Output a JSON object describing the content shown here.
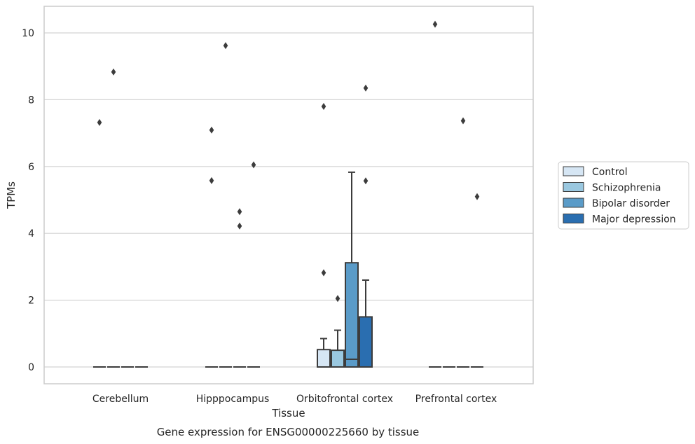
{
  "chart_data": {
    "type": "box",
    "caption": "Gene expression for ENSG00000225660 by tissue",
    "xlabel": "Tissue",
    "ylabel": "TPMs",
    "categories": [
      "Cerebellum",
      "Hipppocampus",
      "Orbitofrontal cortex",
      "Prefrontal cortex"
    ],
    "ylim": [
      -0.5,
      10.8
    ],
    "yticks": [
      0,
      2,
      4,
      6,
      8,
      10
    ],
    "grid": "y",
    "legend_position": "right",
    "series": [
      {
        "name": "Control",
        "color": "#d6e6f4",
        "boxes": [
          {
            "q1": 0,
            "median": 0,
            "q3": 0,
            "whislo": 0,
            "whishi": 0,
            "fliers": [
              7.32
            ]
          },
          {
            "q1": 0,
            "median": 0,
            "q3": 0,
            "whislo": 0,
            "whishi": 0,
            "fliers": [
              7.09,
              5.58
            ]
          },
          {
            "q1": 0,
            "median": 0,
            "q3": 0.52,
            "whislo": 0,
            "whishi": 0.85,
            "fliers": [
              7.8,
              2.82
            ]
          },
          {
            "q1": 0,
            "median": 0,
            "q3": 0,
            "whislo": 0,
            "whishi": 0,
            "fliers": [
              10.26
            ]
          }
        ]
      },
      {
        "name": "Schizophrenia",
        "color": "#9ac8e0",
        "boxes": [
          {
            "q1": 0,
            "median": 0,
            "q3": 0,
            "whislo": 0,
            "whishi": 0,
            "fliers": [
              8.83
            ]
          },
          {
            "q1": 0,
            "median": 0,
            "q3": 0,
            "whislo": 0,
            "whishi": 0,
            "fliers": [
              9.62
            ]
          },
          {
            "q1": 0,
            "median": 0,
            "q3": 0.5,
            "whislo": 0,
            "whishi": 1.1,
            "fliers": [
              2.05
            ]
          },
          {
            "q1": 0,
            "median": 0,
            "q3": 0,
            "whislo": 0,
            "whishi": 0,
            "fliers": []
          }
        ]
      },
      {
        "name": "Bipolar disorder",
        "color": "#5a9bc8",
        "boxes": [
          {
            "q1": 0,
            "median": 0,
            "q3": 0,
            "whislo": 0,
            "whishi": 0,
            "fliers": []
          },
          {
            "q1": 0,
            "median": 0,
            "q3": 0,
            "whislo": 0,
            "whishi": 0,
            "fliers": [
              4.65,
              4.22
            ]
          },
          {
            "q1": 0,
            "median": 0.23,
            "q3": 3.12,
            "whislo": 0,
            "whishi": 5.83,
            "fliers": []
          },
          {
            "q1": 0,
            "median": 0,
            "q3": 0,
            "whislo": 0,
            "whishi": 0,
            "fliers": [
              7.37
            ]
          }
        ]
      },
      {
        "name": "Major depression",
        "color": "#2a6eb0",
        "boxes": [
          {
            "q1": 0,
            "median": 0,
            "q3": 0,
            "whislo": 0,
            "whishi": 0,
            "fliers": []
          },
          {
            "q1": 0,
            "median": 0,
            "q3": 0,
            "whislo": 0,
            "whishi": 0,
            "fliers": [
              6.05
            ]
          },
          {
            "q1": 0,
            "median": 0,
            "q3": 1.5,
            "whislo": 0,
            "whishi": 2.6,
            "fliers": [
              8.35,
              5.57
            ]
          },
          {
            "q1": 0,
            "median": 0,
            "q3": 0,
            "whislo": 0,
            "whishi": 0,
            "fliers": [
              5.1
            ]
          }
        ]
      }
    ]
  }
}
